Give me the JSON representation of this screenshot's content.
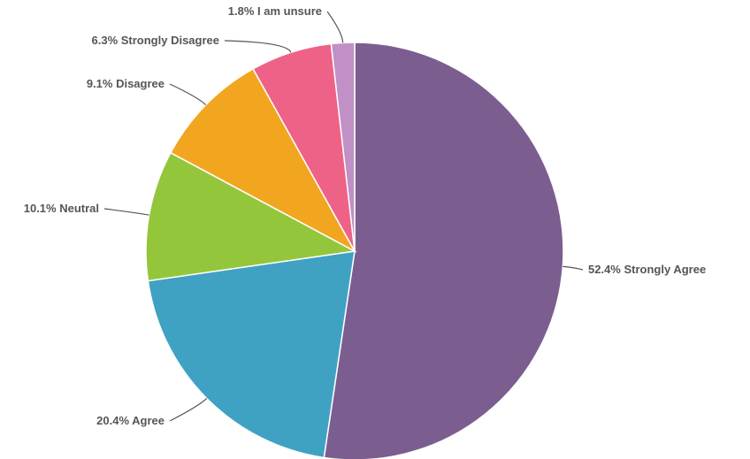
{
  "chart_data": {
    "type": "pie",
    "title": "",
    "start_angle_deg": 0,
    "direction": "clockwise",
    "legend": "none",
    "slices": [
      {
        "label": "Strongly Agree",
        "value": 52.4,
        "display": "52.4% Strongly Agree",
        "color": "#7b5e8f",
        "label_side": "right"
      },
      {
        "label": "Agree",
        "value": 20.4,
        "display": "20.4% Agree",
        "color": "#3fa2c3",
        "label_side": "left"
      },
      {
        "label": "Neutral",
        "value": 10.1,
        "display": "10.1% Neutral",
        "color": "#94c63c",
        "label_side": "left"
      },
      {
        "label": "Disagree",
        "value": 9.1,
        "display": "9.1% Disagree",
        "color": "#f2a620",
        "label_side": "left"
      },
      {
        "label": "Strongly Disagree",
        "value": 6.3,
        "display": "6.3% Strongly Disagree",
        "color": "#ee6288",
        "label_side": "left"
      },
      {
        "label": "I am unsure",
        "value": 1.8,
        "display": "1.8% I am unsure",
        "color": "#c190c6",
        "label_side": "left"
      }
    ]
  }
}
